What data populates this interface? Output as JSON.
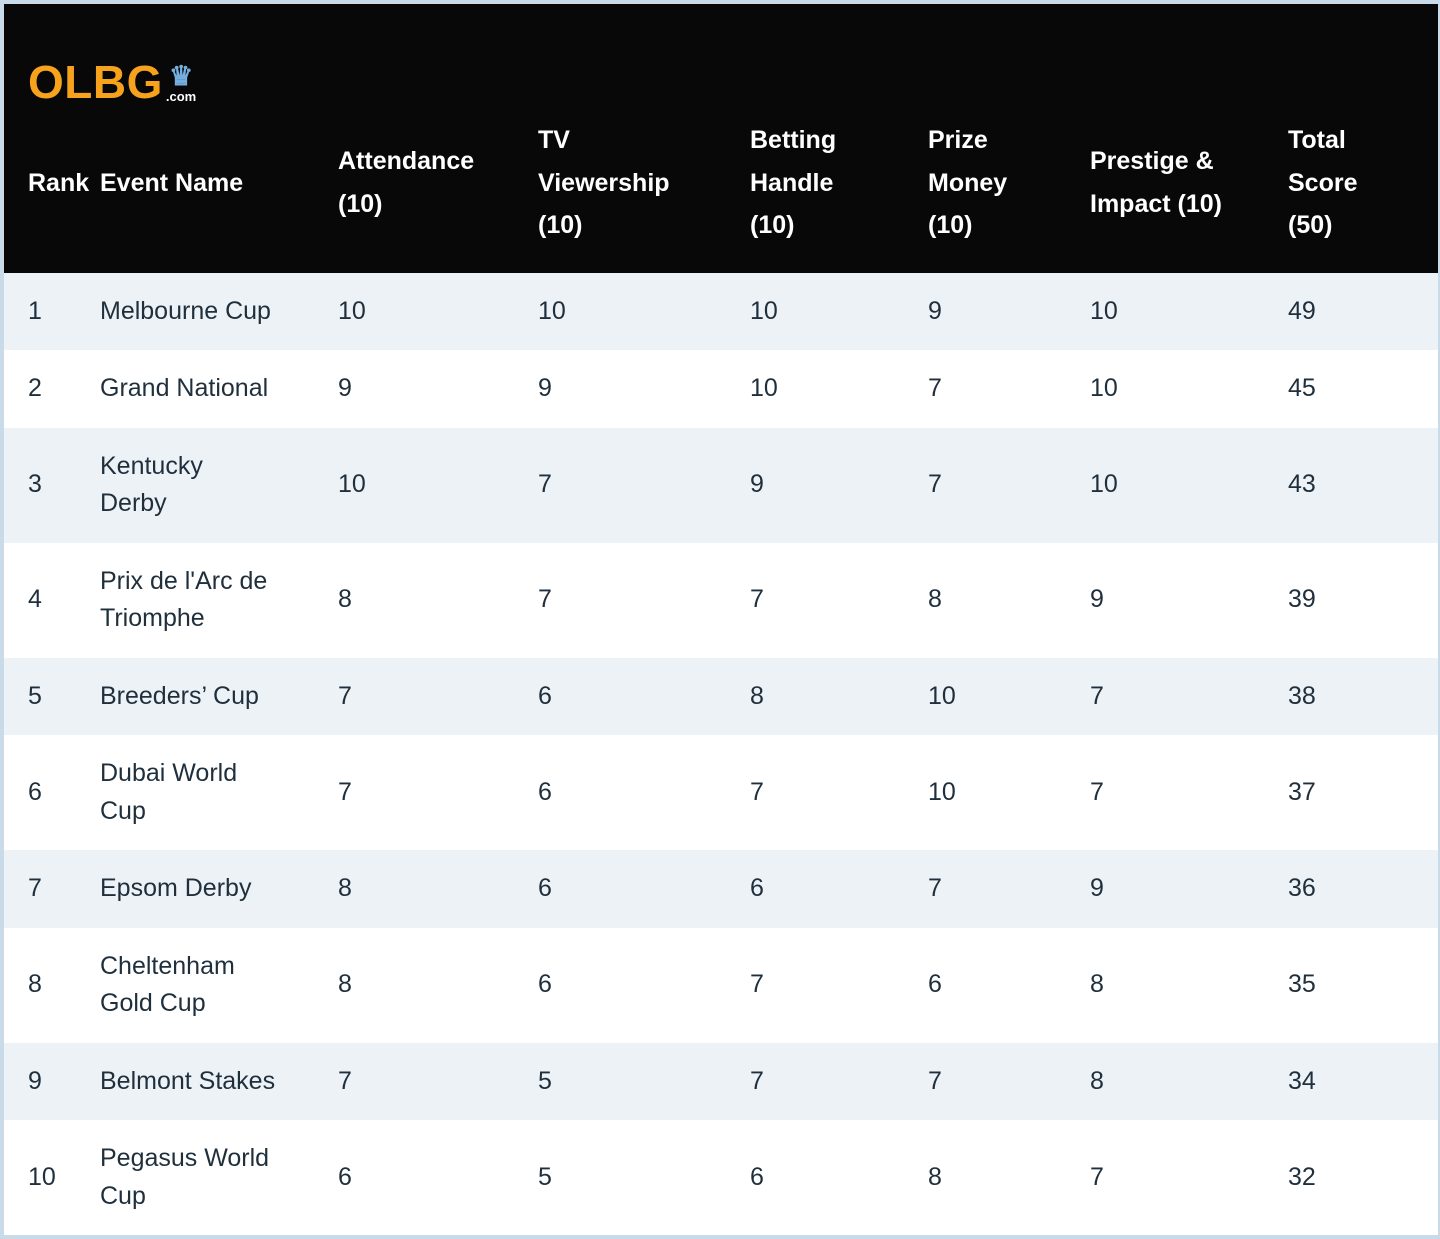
{
  "logo": {
    "brand": "OLBG",
    "crown_icon": "♛",
    "tld": ".com"
  },
  "colors": {
    "header_background": "#080808",
    "header_text": "#ffffff",
    "brand_orange": "#f6a21d",
    "crown_blue": "#74afdf",
    "row_alt_background": "#edf2f7",
    "row_background": "#ffffff",
    "body_text": "#1f2f3c",
    "page_border": "#c9dae8"
  },
  "table": {
    "headers": [
      "Rank",
      "Event Name",
      "Attendance\n(10)",
      "TV\nViewership\n(10)",
      "Betting\nHandle\n(10)",
      "Prize\nMoney\n(10)",
      "Prestige &\nImpact (10)",
      "Total\nScore\n(50)"
    ],
    "rows": [
      {
        "rank": "1",
        "event": "Melbourne Cup",
        "scores": [
          "10",
          "10",
          "10",
          "9",
          "10",
          "49"
        ]
      },
      {
        "rank": "2",
        "event": "Grand National",
        "scores": [
          "9",
          "9",
          "10",
          "7",
          "10",
          "45"
        ]
      },
      {
        "rank": "3",
        "event": "Kentucky\nDerby",
        "scores": [
          "10",
          "7",
          "9",
          "7",
          "10",
          "43"
        ]
      },
      {
        "rank": "4",
        "event": "Prix de l'Arc de\nTriomphe",
        "scores": [
          "8",
          "7",
          "7",
          "8",
          "9",
          "39"
        ]
      },
      {
        "rank": "5",
        "event": "Breeders’ Cup",
        "scores": [
          "7",
          "6",
          "8",
          "10",
          "7",
          "38"
        ]
      },
      {
        "rank": "6",
        "event": "Dubai World\nCup",
        "scores": [
          "7",
          "6",
          "7",
          "10",
          "7",
          "37"
        ]
      },
      {
        "rank": "7",
        "event": "Epsom Derby",
        "scores": [
          "8",
          "6",
          "6",
          "7",
          "9",
          "36"
        ]
      },
      {
        "rank": "8",
        "event": "Cheltenham\nGold Cup",
        "scores": [
          "8",
          "6",
          "7",
          "6",
          "8",
          "35"
        ]
      },
      {
        "rank": "9",
        "event": "Belmont Stakes",
        "scores": [
          "7",
          "5",
          "7",
          "7",
          "8",
          "34"
        ]
      },
      {
        "rank": "10",
        "event": "Pegasus World\nCup",
        "scores": [
          "6",
          "5",
          "6",
          "8",
          "7",
          "32"
        ]
      }
    ]
  },
  "chart_data": {
    "type": "table",
    "columns": [
      "Rank",
      "Event Name",
      "Attendance (10)",
      "TV Viewership (10)",
      "Betting Handle (10)",
      "Prize Money (10)",
      "Prestige & Impact (10)",
      "Total Score (50)"
    ],
    "rows": [
      [
        1,
        "Melbourne Cup",
        10,
        10,
        10,
        9,
        10,
        49
      ],
      [
        2,
        "Grand National",
        9,
        9,
        10,
        7,
        10,
        45
      ],
      [
        3,
        "Kentucky Derby",
        10,
        7,
        9,
        7,
        10,
        43
      ],
      [
        4,
        "Prix de l'Arc de Triomphe",
        8,
        7,
        7,
        8,
        9,
        39
      ],
      [
        5,
        "Breeders’ Cup",
        7,
        6,
        8,
        10,
        7,
        38
      ],
      [
        6,
        "Dubai World Cup",
        7,
        6,
        7,
        10,
        7,
        37
      ],
      [
        7,
        "Epsom Derby",
        8,
        6,
        6,
        7,
        9,
        36
      ],
      [
        8,
        "Cheltenham Gold Cup",
        8,
        6,
        7,
        6,
        8,
        35
      ],
      [
        9,
        "Belmont Stakes",
        7,
        5,
        7,
        7,
        8,
        34
      ],
      [
        10,
        "Pegasus World Cup",
        6,
        5,
        6,
        8,
        7,
        32
      ]
    ]
  }
}
